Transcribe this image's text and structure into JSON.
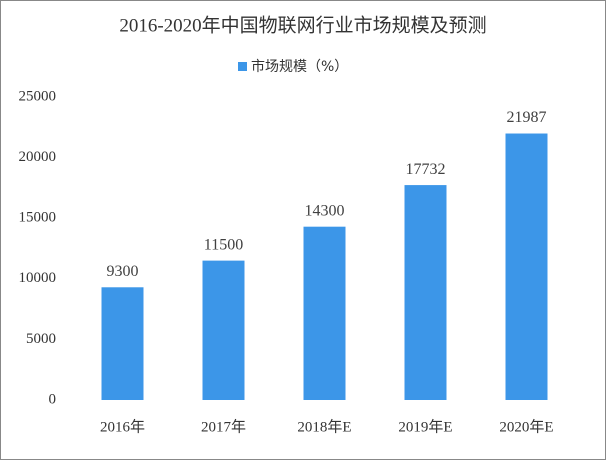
{
  "chart_data": {
    "type": "bar",
    "title": "2016-2020年中国物联网行业市场规模及预测",
    "categories": [
      "2016年",
      "2017年",
      "2018年E",
      "2019年E",
      "2020年E"
    ],
    "series": [
      {
        "name": "市场规模（%）",
        "color": "#3c96e8",
        "values": [
          9300,
          11500,
          14300,
          17732,
          21987
        ]
      }
    ],
    "ylim": [
      0,
      25000
    ],
    "yticks": [
      0,
      5000,
      10000,
      15000,
      20000,
      25000
    ],
    "grid": false
  }
}
